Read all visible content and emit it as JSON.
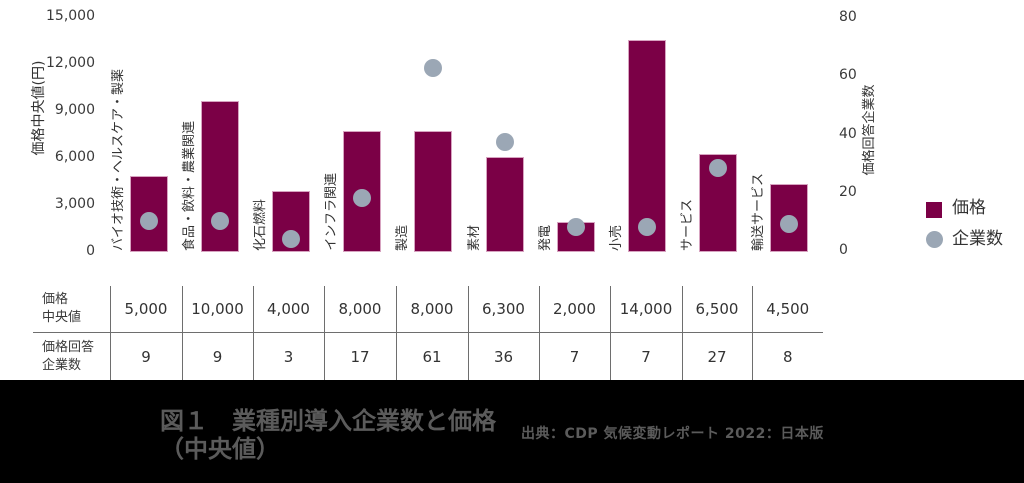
{
  "chart_data": {
    "type": "bar",
    "title": "図１　業種別導入企業数と価格（中央値）",
    "categories": [
      "バイオ技術・ヘルスケア・製薬",
      "食品・飲料・農業関連",
      "化石燃料",
      "インフラ関連",
      "製造",
      "素材",
      "発電",
      "小売",
      "サービス",
      "輸送サービス"
    ],
    "series": [
      {
        "name": "価格",
        "type": "bar",
        "axis": "left",
        "color": "#7b0046",
        "values": [
          5000,
          10000,
          4000,
          8000,
          8000,
          6300,
          2000,
          14000,
          6500,
          4500
        ]
      },
      {
        "name": "企業数",
        "type": "scatter",
        "axis": "right",
        "color": "#9ba7b5",
        "values": [
          9,
          9,
          3,
          17,
          61,
          36,
          7,
          7,
          27,
          8
        ]
      }
    ],
    "xlabel": "",
    "ylabel": "価格中央値(円)",
    "ylim": [
      0,
      15000
    ],
    "yticks": [
      "15,000",
      "12,000",
      "9,000",
      "6,000",
      "3,000",
      "0"
    ],
    "y2label": "価格回答企業数",
    "y2lim": [
      0,
      80
    ],
    "y2ticks": [
      "80",
      "60",
      "40",
      "20",
      "0"
    ],
    "grid": false,
    "legend": {
      "position": "right",
      "entries": [
        {
          "label": "価格",
          "marker": "square",
          "color": "#7b0046"
        },
        {
          "label": "企業数",
          "marker": "circle",
          "color": "#9ba7b5"
        }
      ]
    }
  },
  "table": {
    "rows": [
      {
        "header_lines": [
          "価格",
          "中央値"
        ],
        "cells": [
          "5,000",
          "10,000",
          "4,000",
          "8,000",
          "8,000",
          "6,300",
          "2,000",
          "14,000",
          "6,500",
          "4,500"
        ]
      },
      {
        "header_lines": [
          "価格回答",
          "企業数"
        ],
        "cells": [
          "9",
          "9",
          "3",
          "17",
          "61",
          "36",
          "7",
          "7",
          "27",
          "8"
        ]
      }
    ]
  },
  "caption": {
    "title_line1": "図１　業種別導入企業数と価格",
    "title_line2": "（中央値）",
    "source": "出典：CDP 気候変動レポート 2022：日本版"
  }
}
